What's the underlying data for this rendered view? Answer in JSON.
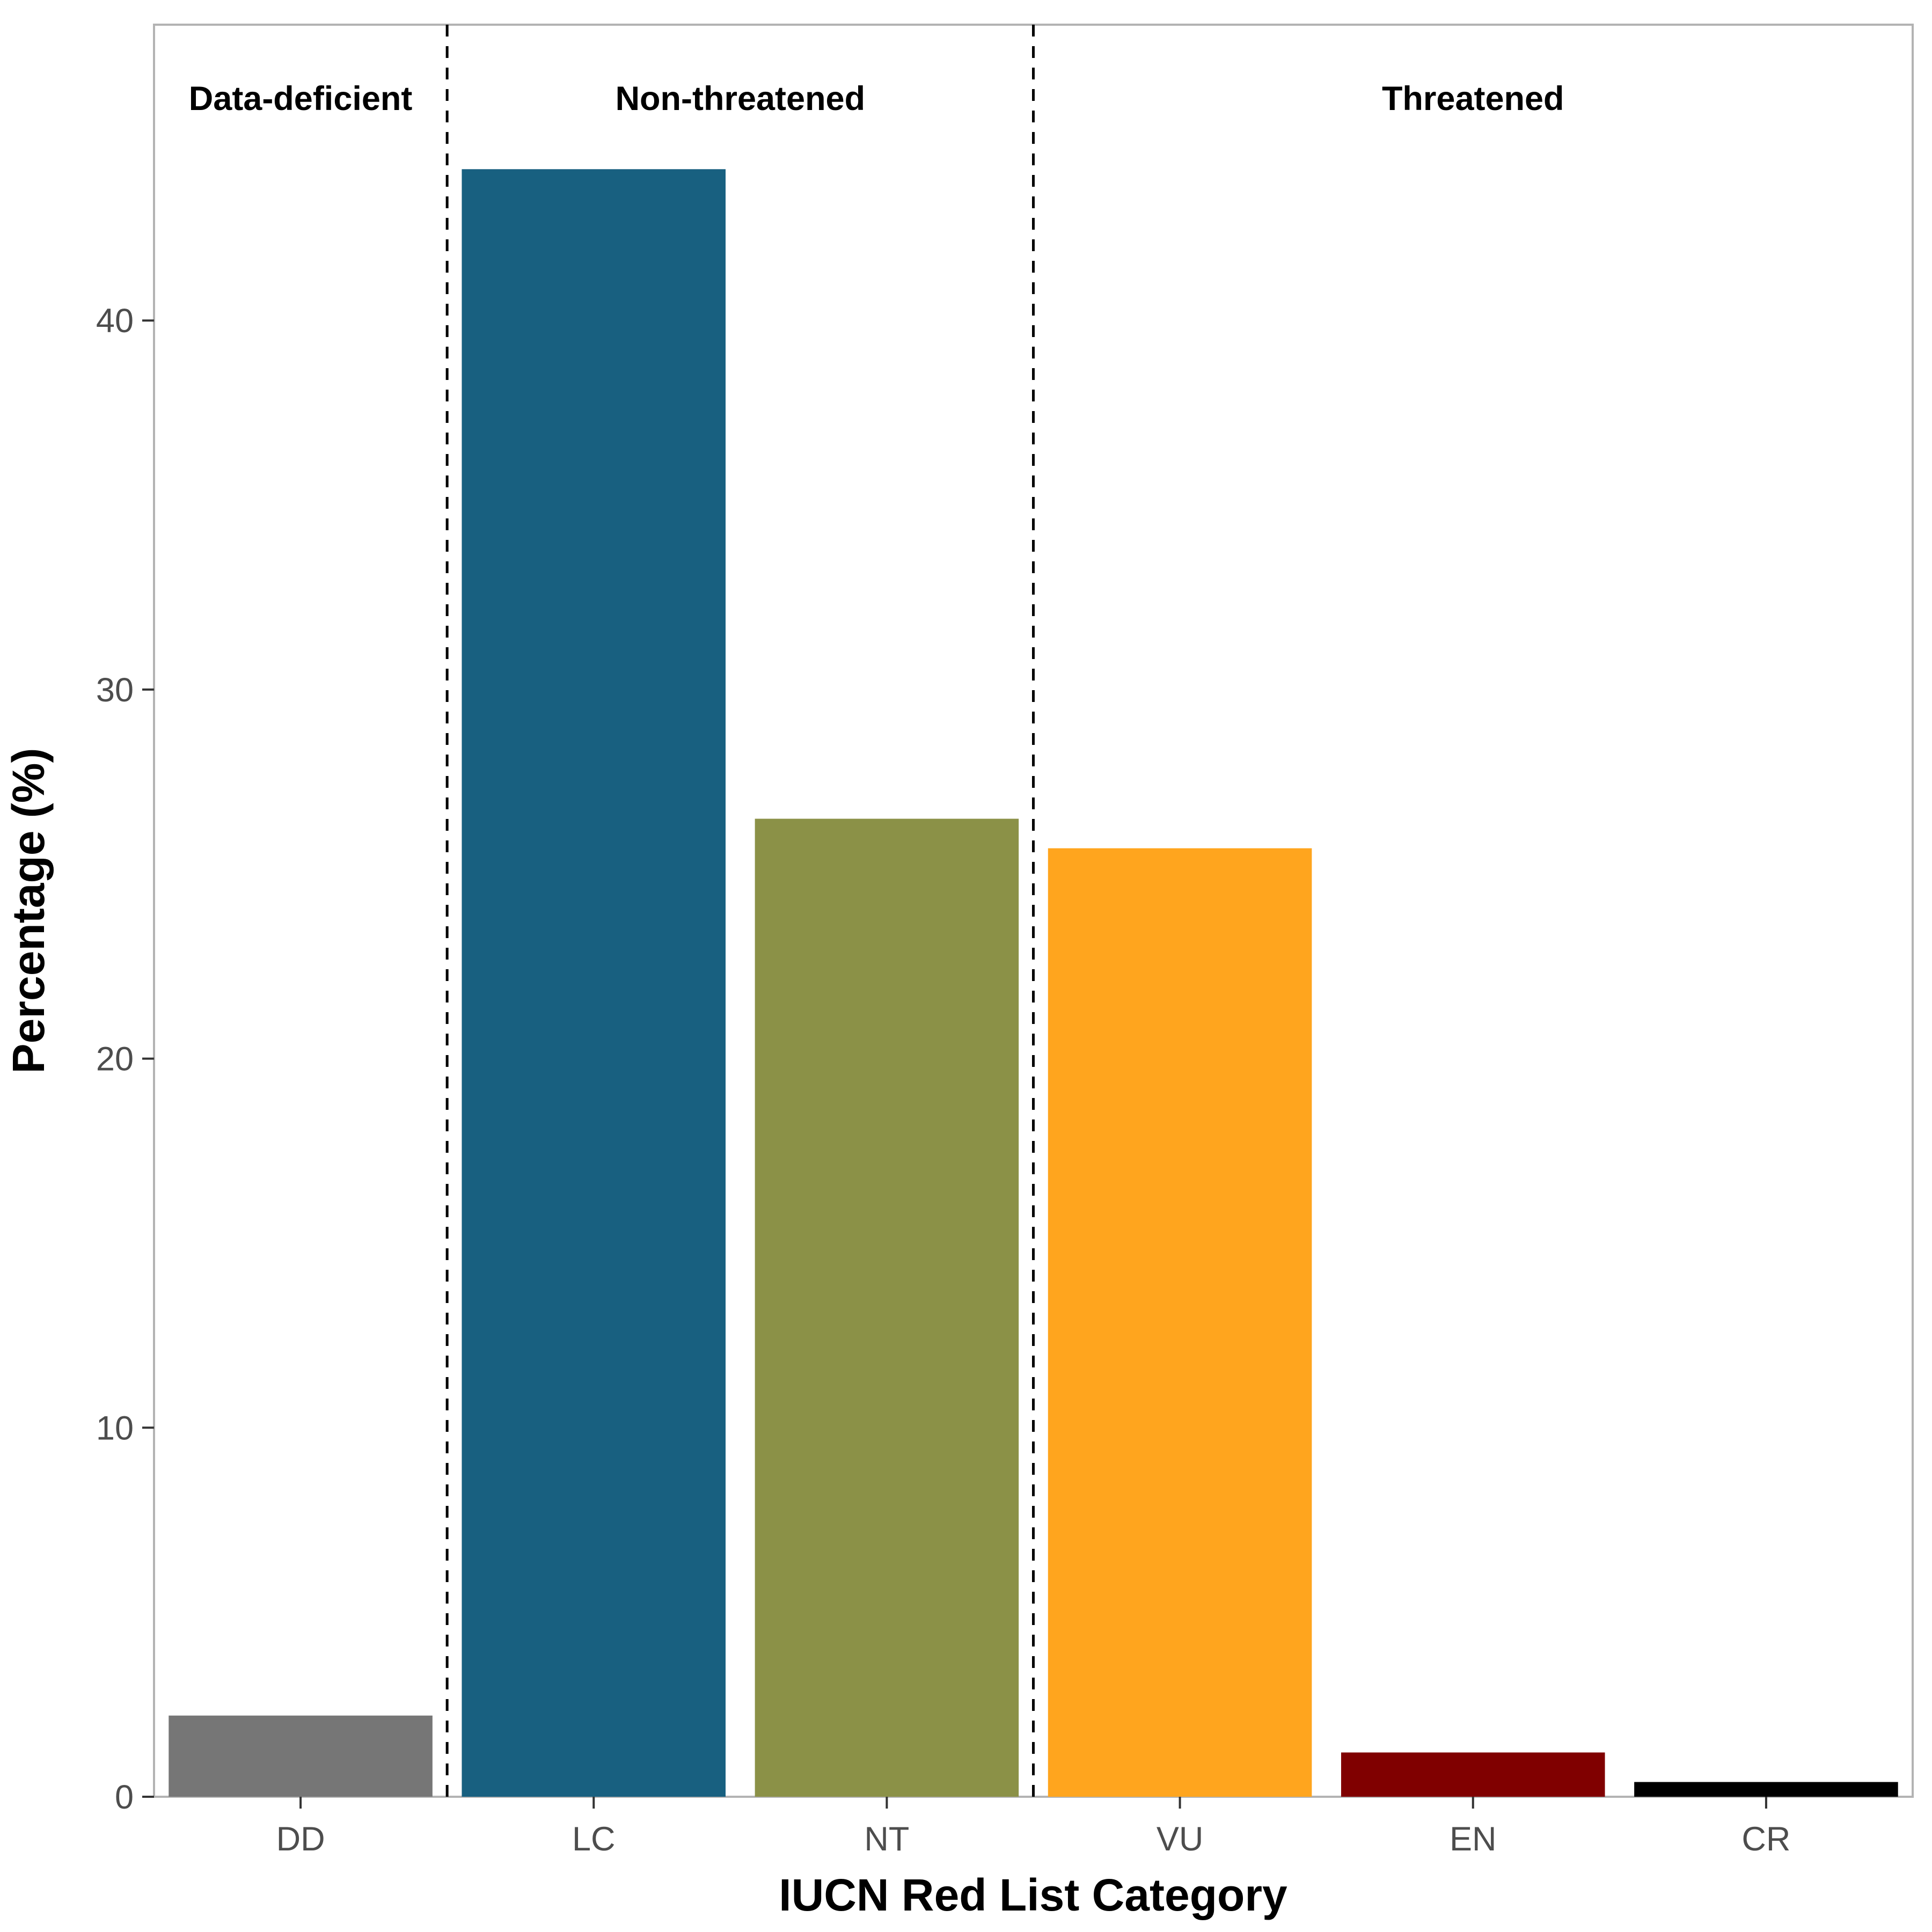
{
  "chart_data": {
    "type": "bar",
    "xlabel": "IUCN Red List Category",
    "ylabel": "Percentage (%)",
    "ylim": [
      0,
      48
    ],
    "yticks": [
      0,
      10,
      20,
      30,
      40
    ],
    "grid": false,
    "categories": [
      "DD",
      "LC",
      "NT",
      "VU",
      "EN",
      "CR"
    ],
    "values": [
      2.2,
      44.1,
      26.5,
      25.7,
      1.2,
      0.4
    ],
    "colors": [
      "#767676",
      "#186080",
      "#8b9147",
      "#ffa51e",
      "#800000",
      "#000000"
    ],
    "groups": [
      {
        "label": "Data-deficient",
        "categories": [
          "DD"
        ]
      },
      {
        "label": "Non-threatened",
        "categories": [
          "LC",
          "NT"
        ]
      },
      {
        "label": "Threatened",
        "categories": [
          "VU",
          "EN",
          "CR"
        ]
      }
    ],
    "group_dividers": "dashed"
  }
}
